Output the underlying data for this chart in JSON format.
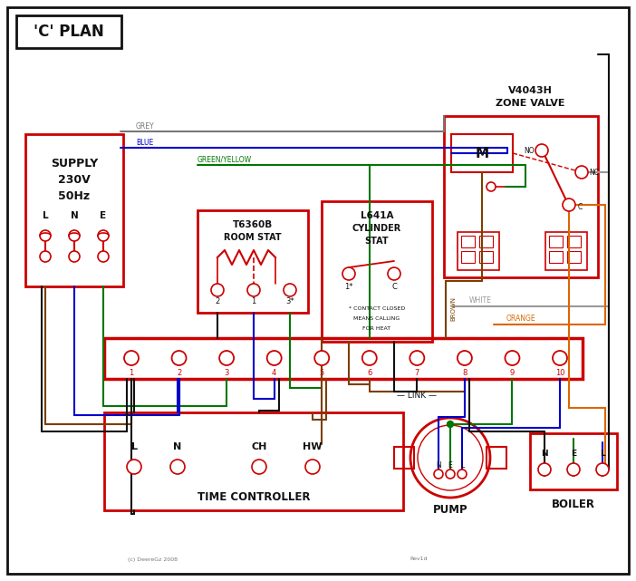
{
  "bg": "#ffffff",
  "black": "#111111",
  "red": "#cc0000",
  "blue": "#0000cc",
  "green": "#007700",
  "grey": "#777777",
  "brown": "#7B3F00",
  "orange": "#DD6600",
  "white_w": "#999999",
  "title": "'C' PLAN",
  "supply_lines": [
    "SUPPLY",
    "230V",
    "50Hz"
  ],
  "lne": [
    "L",
    "N",
    "E"
  ],
  "zone_valve_title1": "V4043H",
  "zone_valve_title2": "ZONE VALVE",
  "room_stat_title1": "T6360B",
  "room_stat_title2": "ROOM STAT",
  "cyl_stat_title1": "L641A",
  "cyl_stat_title2": "CYLINDER",
  "cyl_stat_title3": "STAT",
  "tc_title": "TIME CONTROLLER",
  "tc_terminals": [
    "L",
    "N",
    "CH",
    "HW"
  ],
  "pump_label": "PUMP",
  "boiler_label": "BOILER",
  "nel": [
    "N",
    "E",
    "L"
  ],
  "terminals": [
    "1",
    "2",
    "3",
    "4",
    "5",
    "6",
    "7",
    "8",
    "9",
    "10"
  ],
  "lbl_grey": "GREY",
  "lbl_blue": "BLUE",
  "lbl_gy": "GREEN/YELLOW",
  "lbl_brown": "BROWN",
  "lbl_white": "WHITE",
  "lbl_orange": "ORANGE",
  "lbl_link": "LINK",
  "contact_no": "NO",
  "contact_nc": "NC",
  "contact_c": "C",
  "motor_label": "M",
  "note1": "* CONTACT CLOSED",
  "note2": "MEANS CALLING",
  "note3": "FOR HEAT",
  "copyright": "(c) DeereGz 2008",
  "revision": "Rev1d"
}
